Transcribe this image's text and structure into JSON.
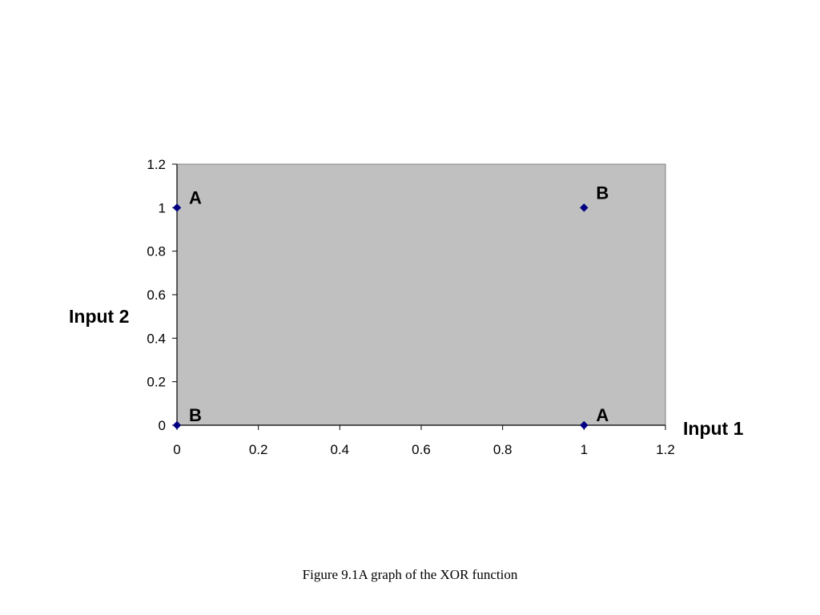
{
  "chart_data": {
    "type": "scatter",
    "title": "",
    "xlabel": "Input 1",
    "ylabel": "Input 2",
    "xlim": [
      0,
      1.2
    ],
    "ylim": [
      0,
      1.2
    ],
    "x_ticks": [
      "0",
      "0.2",
      "0.4",
      "0.6",
      "0.8",
      "1",
      "1.2"
    ],
    "y_ticks": [
      "0",
      "0.2",
      "0.4",
      "0.6",
      "0.8",
      "1",
      "1.2"
    ],
    "grid": false,
    "plot_background": "#c0c0c0",
    "marker_color": "#000080",
    "points": [
      {
        "x": 0,
        "y": 1,
        "label": "A"
      },
      {
        "x": 1,
        "y": 1,
        "label": "B"
      },
      {
        "x": 0,
        "y": 0,
        "label": "B"
      },
      {
        "x": 1,
        "y": 0,
        "label": "A"
      }
    ]
  },
  "caption": "Figure 9.1A graph of the XOR function"
}
